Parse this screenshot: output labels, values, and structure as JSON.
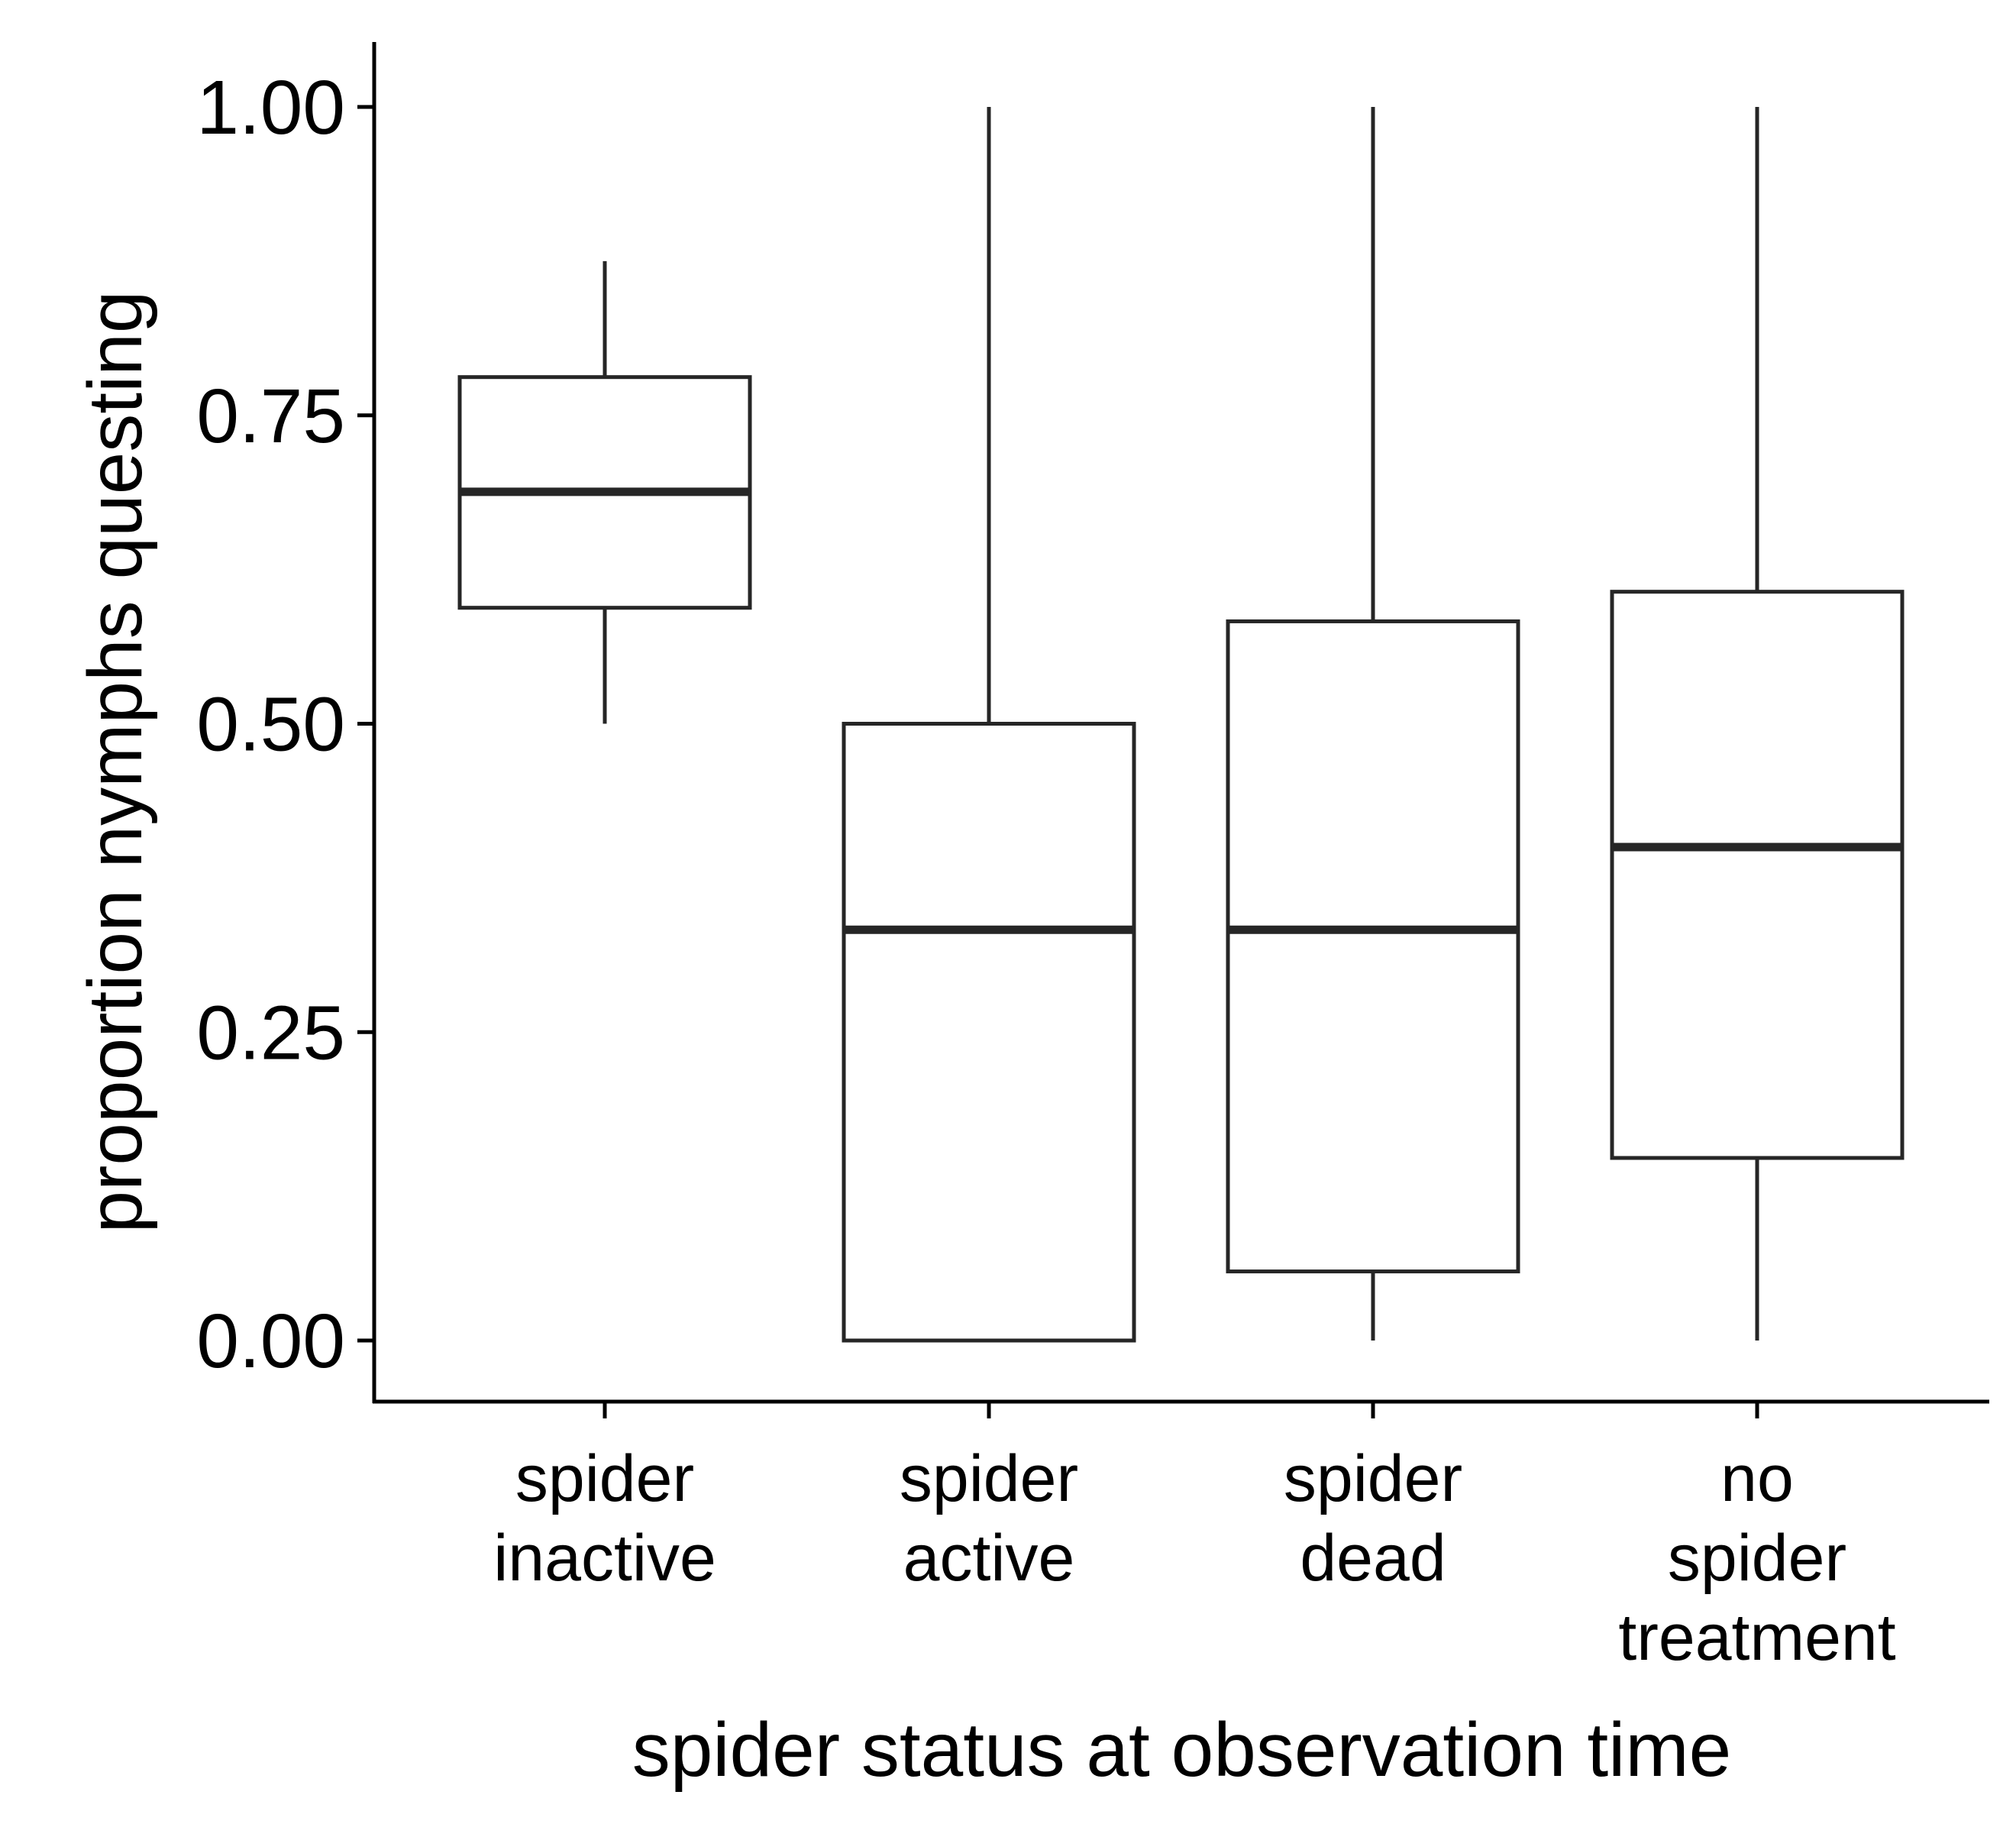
{
  "chart_data": {
    "type": "boxplot",
    "title": "",
    "xlabel": "spider status at observation time",
    "ylabel": "proportion nymphs questing",
    "ylim": [
      -0.1,
      1.05
    ],
    "yticks": [
      0.0,
      0.25,
      0.5,
      0.75,
      1.0
    ],
    "ytick_labels": [
      "0.00",
      "0.25",
      "0.50",
      "0.75",
      "1.00"
    ],
    "grid": false,
    "legend": "none",
    "colors": {
      "stroke": "#262626",
      "fill": "#ffffff",
      "axis": "#000000"
    },
    "categories": [
      [
        "spider",
        "inactive"
      ],
      [
        "spider",
        "active"
      ],
      [
        "spider",
        "dead"
      ],
      [
        "no",
        "spider",
        "treatment"
      ]
    ],
    "boxes": [
      {
        "whisker_low": 0.5,
        "q1": 0.594,
        "median": 0.688,
        "q3": 0.781,
        "whisker_high": 0.875
      },
      {
        "whisker_low": 0.0,
        "q1": 0.0,
        "median": 0.333,
        "q3": 0.5,
        "whisker_high": 1.0
      },
      {
        "whisker_low": 0.0,
        "q1": 0.056,
        "median": 0.333,
        "q3": 0.583,
        "whisker_high": 1.0
      },
      {
        "whisker_low": 0.0,
        "q1": 0.148,
        "median": 0.4,
        "q3": 0.607,
        "whisker_high": 1.0
      }
    ]
  }
}
